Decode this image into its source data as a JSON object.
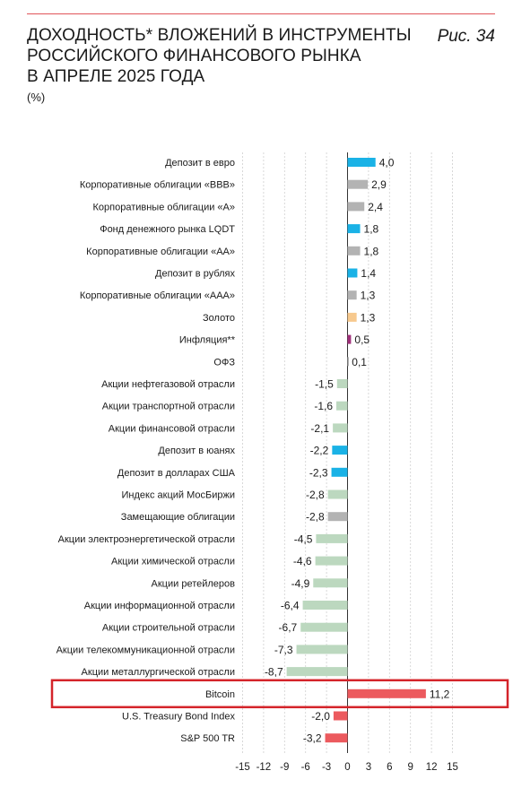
{
  "header": {
    "title": "ДОХОДНОСТЬ* ВЛОЖЕНИЙ В ИНСТРУМЕНТЫ\nРОССИЙСКОГО ФИНАНСОВОГО РЫНКА\nВ АПРЕЛЕ 2025 ГОДА",
    "figure_label": "Рис. 34",
    "unit": "(%)"
  },
  "colors": {
    "blue": "#1ab2e6",
    "gray": "#b3b3b3",
    "gold": "#f7c98e",
    "purple": "#a0307a",
    "green": "#bcd8bf",
    "red": "#ec5a5e",
    "highlight_border": "#d4242a"
  },
  "chart_data": {
    "type": "bar",
    "orientation": "horizontal",
    "title": "ДОХОДНОСТЬ* ВЛОЖЕНИЙ В ИНСТРУМЕНТЫ РОССИЙСКОГО ФИНАНСОВОГО РЫНКА В АПРЕЛЕ 2025 ГОДА",
    "unit": "(%)",
    "xlim": [
      -15,
      15
    ],
    "xticks": [
      -15,
      -12,
      -9,
      -6,
      -3,
      0,
      3,
      6,
      9,
      12,
      15
    ],
    "grid": "vertical dashed",
    "highlighted_category": "Bitcoin",
    "categories": [
      "Депозит в евро",
      "Корпоративные облигации «BBB»",
      "Корпоративные облигации «A»",
      "Фонд денежного рынка LQDT",
      "Корпоративные облигации «AA»",
      "Депозит в рублях",
      "Корпоративные облигации «AAA»",
      "Золото",
      "Инфляция**",
      "ОФЗ",
      "Акции нефтегазовой отрасли",
      "Акции транспортной отрасли",
      "Акции финансовой отрасли",
      "Депозит в юанях",
      "Депозит в долларах США",
      "Индекс акций МосБиржи",
      "Замещающие облигации",
      "Акции электроэнергетической отрасли",
      "Акции химической отрасли",
      "Акции ретейлеров",
      "Акции информационной отрасли",
      "Акции строительной отрасли",
      "Акции телекоммуникационной отрасли",
      "Акции металлургической отрасли",
      "Bitcoin",
      "U.S. Treasury Bond Index",
      "S&P 500 TR"
    ],
    "values": [
      4.0,
      2.9,
      2.4,
      1.8,
      1.8,
      1.4,
      1.3,
      1.3,
      0.5,
      0.1,
      -1.5,
      -1.6,
      -2.1,
      -2.2,
      -2.3,
      -2.8,
      -2.8,
      -4.5,
      -4.6,
      -4.9,
      -6.4,
      -6.7,
      -7.3,
      -8.7,
      11.2,
      -2.0,
      -3.2
    ],
    "value_labels": [
      "4,0",
      "2,9",
      "2,4",
      "1,8",
      "1,8",
      "1,4",
      "1,3",
      "1,3",
      "0,5",
      "0,1",
      "-1,5",
      "-1,6",
      "-2,1",
      "-2,2",
      "-2,3",
      "-2,8",
      "-2,8",
      "-4,5",
      "-4,6",
      "-4,9",
      "-6,4",
      "-6,7",
      "-7,3",
      "-8,7",
      "11,2",
      "-2,0",
      "-3,2"
    ],
    "bar_colors": [
      "blue",
      "gray",
      "gray",
      "blue",
      "gray",
      "blue",
      "gray",
      "gold",
      "purple",
      "gray",
      "green",
      "green",
      "green",
      "blue",
      "blue",
      "green",
      "gray",
      "green",
      "green",
      "green",
      "green",
      "green",
      "green",
      "green",
      "red",
      "red",
      "red"
    ]
  }
}
